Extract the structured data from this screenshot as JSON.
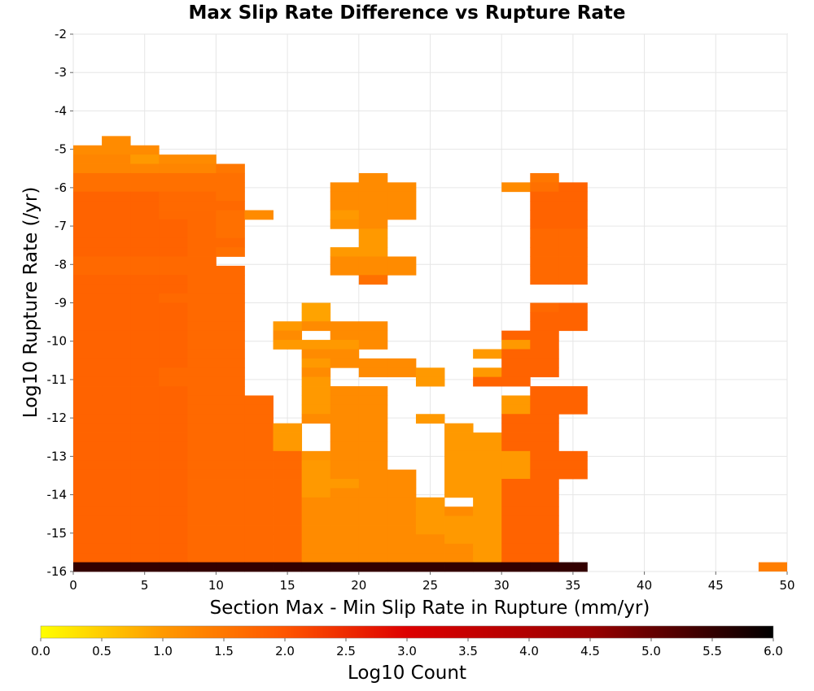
{
  "chart_data": {
    "type": "heatmap",
    "title": "Max Slip Rate Difference vs Rupture Rate",
    "xlabel": "Section Max - Min Slip Rate in Rupture (mm/yr)",
    "ylabel": "Log10 Rupture Rate (/yr)",
    "xlim": [
      0,
      50
    ],
    "ylim": [
      -16,
      -2
    ],
    "x_ticks": [
      0,
      5,
      10,
      15,
      20,
      25,
      30,
      35,
      40,
      45,
      50
    ],
    "y_ticks": [
      -2,
      -3,
      -4,
      -5,
      -6,
      -7,
      -8,
      -9,
      -10,
      -11,
      -12,
      -13,
      -14,
      -15,
      -16
    ],
    "grid": true,
    "bin_width": 2,
    "bin_height": 0.375,
    "y_bin_origin": -16,
    "colorbar": {
      "label": "Log10 Count",
      "range": [
        0.0,
        6.0
      ],
      "ticks": [
        0.0,
        0.5,
        1.0,
        1.5,
        2.0,
        2.5,
        3.0,
        3.5,
        4.0,
        4.5,
        5.0,
        5.5,
        6.0
      ],
      "tick_labels": [
        "0.0",
        "0.5",
        "1.0",
        "1.5",
        "2.0",
        "2.5",
        "3.0",
        "3.5",
        "4.0",
        "4.5",
        "5.0",
        "5.5",
        "6.0"
      ],
      "colors": [
        "#ffff00",
        "#ff9900",
        "#ff5500",
        "#dd0000",
        "#990000",
        "#000000"
      ]
    },
    "grid_rows_top_to_bottom": [
      "...............................",
      "...............................",
      "...............................",
      "...............................",
      "...............................",
      "...............................",
      "...............................",
      "...............................",
      "...............................",
      "...............................",
      "...............................",
      ".m.............................",
      "mmm............................",
      "nnkmm..........................",
      "nnnnnp.........................",
      "qqqqqq....m.....p..............",
      "qqqqqq...mmm...mqs.............",
      "sssrrq...mmm....ss.............",
      "sssrrr...mmm....ss.............",
      "sssrrqm..kmm....ss.............",
      "ssssrq...lm.....ss.............",
      "ssssrq....k.....rr.............",
      "ssssrr....k.....rr.............",
      "ssssrq...kk.....rr.............",
      "rrrrr....mmm....rr.............",
      "rrrrrr...mmm....rr.............",
      "ssssrr....q.....rr.............",
      "ssssrr.......................",
      "sssrrr.......................",
      "ssssrr..j.......rs.............",
      "ssssrr..j.......ss.............",
      "ssssrr.kmmm.....ss.............",
      "ssssrr.m.mm....ss..............",
      "ssssrr.kkkm....ks..............",
      "ssssrr..mm....kss..............",
      "ssssrr..kmmm...ss..............",
      "sssrrr..m.mmk.kss..............",
      "sssrrr..k...k.ss...............",
      "ssssrr..kmm.....ss.............",
      "ssssrrr.kmm....kss.............",
      "ssssrrr.kmm....kss.............",
      "ssssrrr.mmm.k..ss..............",
      "ssssrrrk.mm..k.ss..............",
      "ssssrrrk.mm..kkss..............",
      "ssssrrrk.mm..kkss..............",
      "ssssrrrrlmm..kkkss.............",
      "ssssrrrrkmm..kkkss.............",
      "ssssrrrrkmmm.kkkss.............",
      "ssssrrrrkkmm.kkss..............",
      "ssssrrrrkmmm.kkss..............",
      "ssssrrrrmmmmk.kss..............",
      "ssssrrrrmmmmkmkss..............",
      "ssssrrrrmmmmkkkss..............",
      "ssssrrrrmmmmkkkss..............",
      "ssssrrrrmmmmmkkss..............",
      "ssssrrrrmmmmmmkss..............",
      "ssssrrrrmmmmmmkss..............",
      "vvvvvvvvvvvvvvvvvv.............."
    ],
    "note_cells": [
      {
        "x": 48.0,
        "y": -16.0,
        "v": 1.4
      }
    ]
  }
}
